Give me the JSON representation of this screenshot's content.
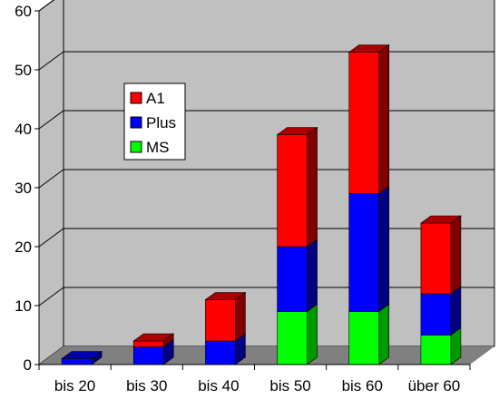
{
  "chart_data": {
    "type": "bar",
    "stacked": true,
    "three_d": true,
    "categories": [
      "bis 20",
      "bis 30",
      "bis 40",
      "bis 50",
      "bis 60",
      "über 60"
    ],
    "series": [
      {
        "name": "MS",
        "values": [
          0,
          0,
          0,
          9,
          9,
          5
        ],
        "color": "#00ff00",
        "side_color": "#009900",
        "top_color": "#33cc33"
      },
      {
        "name": "Plus",
        "values": [
          1,
          3,
          4,
          11,
          20,
          7
        ],
        "color": "#0000ff",
        "side_color": "#000080",
        "top_color": "#0000aa"
      },
      {
        "name": "A1",
        "values": [
          0,
          1,
          7,
          19,
          24,
          12
        ],
        "color": "#ff0000",
        "side_color": "#800000",
        "top_color": "#aa0000"
      }
    ],
    "legend_order": [
      "A1",
      "Plus",
      "MS"
    ],
    "yticks": [
      0,
      10,
      20,
      30,
      40,
      50,
      60
    ],
    "ylim": [
      0,
      60
    ],
    "grid": true,
    "legend_position": "upper-left-inside",
    "title": "",
    "xlabel": "",
    "ylabel": "",
    "wall_color": "#c0c0c0",
    "floor_color": "#808080"
  }
}
